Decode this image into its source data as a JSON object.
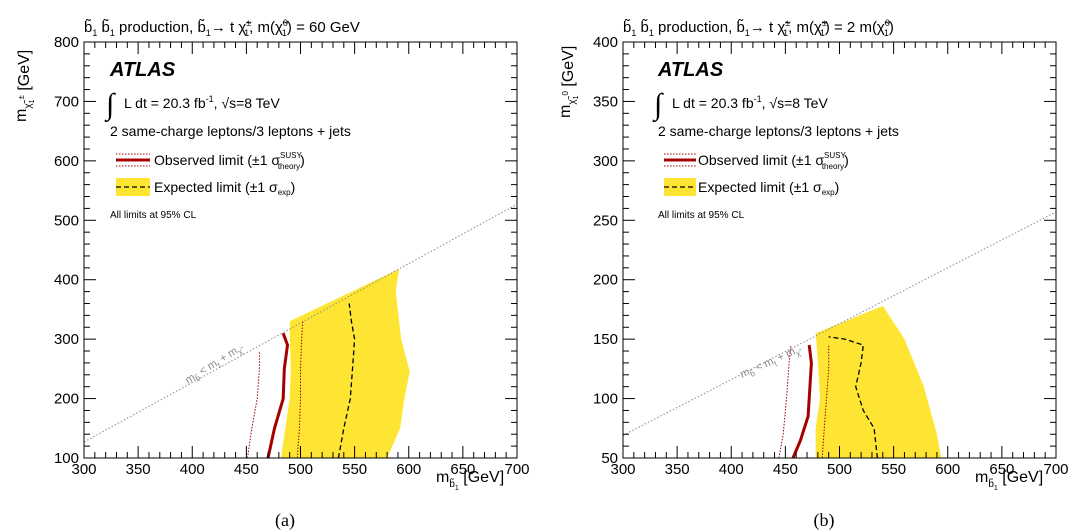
{
  "colors": {
    "expected_band": "#ffe533",
    "observed": "#a50000",
    "expected": "#000000",
    "kinematic": "#8a8a8a"
  },
  "chart_data": [
    {
      "type": "contour",
      "panel": "(a)",
      "title": "b̃₁ b̃₁ production, b̃₁→ t χ̃₁±, m(χ̃₁⁰) = 60 GeV",
      "xlabel": "m_b̃₁ [GeV]",
      "ylabel": "m_χ̃₁± [GeV]",
      "xlim": [
        300,
        700
      ],
      "ylim": [
        100,
        800
      ],
      "xticks": [
        300,
        350,
        400,
        450,
        500,
        550,
        600,
        650,
        700
      ],
      "yticks": [
        100,
        200,
        300,
        400,
        500,
        600,
        700,
        800
      ],
      "xtick_labels": [
        "300",
        "350",
        "400",
        "450",
        "500",
        "550",
        "600",
        "650",
        "700"
      ],
      "ytick_labels": [
        "100",
        "200",
        "300",
        "400",
        "500",
        "600",
        "700",
        "800"
      ],
      "experiment": "ATLAS",
      "luminosity_text": "L dt = 20.3 fb⁻¹, √s=8 TeV",
      "selection_text": "2 same-charge leptons/3 leptons + jets",
      "legend": [
        "Observed limit (±1 σ theory SUSY)",
        "Expected limit (±1 σ exp)"
      ],
      "note": "All limits at 95% CL",
      "kinematic_label": "m_b̃ < m_t + m_χ̃",
      "kinematic_line": [
        [
          300,
          127
        ],
        [
          700,
          527
        ]
      ],
      "observed": [
        [
          470,
          100
        ],
        [
          476,
          150
        ],
        [
          484,
          200
        ],
        [
          485,
          250
        ],
        [
          488,
          290
        ],
        [
          484,
          310
        ]
      ],
      "observed_minus1sigma": [
        [
          451,
          100
        ],
        [
          455,
          150
        ],
        [
          460,
          200
        ],
        [
          462,
          250
        ],
        [
          462,
          280
        ]
      ],
      "observed_plus1sigma": [
        [
          497,
          100
        ],
        [
          499,
          150
        ],
        [
          500,
          200
        ],
        [
          500,
          250
        ],
        [
          501,
          300
        ],
        [
          502,
          330
        ]
      ],
      "expected": [
        [
          535,
          100
        ],
        [
          540,
          150
        ],
        [
          546,
          200
        ],
        [
          548,
          250
        ],
        [
          550,
          300
        ],
        [
          547,
          330
        ],
        [
          545,
          360
        ]
      ],
      "expected_band": [
        [
          482,
          100
        ],
        [
          486,
          150
        ],
        [
          490,
          200
        ],
        [
          491,
          250
        ],
        [
          490,
          310
        ],
        [
          490,
          330
        ],
        [
          591,
          418
        ],
        [
          588,
          380
        ],
        [
          593,
          300
        ],
        [
          601,
          245
        ],
        [
          596,
          200
        ],
        [
          592,
          150
        ],
        [
          580,
          100
        ]
      ]
    },
    {
      "type": "contour",
      "panel": "(b)",
      "title": "b̃₁ b̃₁ production, b̃₁→ t χ̃₁±, m(χ̃₁±) = 2 m(χ̃₁⁰)",
      "xlabel": "m_b̃₁ [GeV]",
      "ylabel": "m_χ̃₁⁰ [GeV]",
      "xlim": [
        300,
        700
      ],
      "ylim": [
        50,
        400
      ],
      "xticks": [
        300,
        350,
        400,
        450,
        500,
        550,
        600,
        650,
        700
      ],
      "yticks": [
        50,
        100,
        150,
        200,
        250,
        300,
        350,
        400
      ],
      "xtick_labels": [
        "300",
        "350",
        "400",
        "450",
        "500",
        "550",
        "600",
        "650",
        "700"
      ],
      "ytick_labels": [
        "50",
        "100",
        "150",
        "200",
        "250",
        "300",
        "350",
        "400"
      ],
      "experiment": "ATLAS",
      "luminosity_text": "L dt = 20.3 fb⁻¹, √s=8 TeV",
      "selection_text": "2 same-charge leptons/3 leptons + jets",
      "legend": [
        "Observed limit (±1 σ theory SUSY)",
        "Expected limit (±1 σ exp)"
      ],
      "note": "All limits at 95% CL",
      "kinematic_label": "m_b̃ < m_t + m_χ̃",
      "kinematic_line": [
        [
          300,
          69
        ],
        [
          700,
          257
        ]
      ],
      "observed": [
        [
          457,
          50
        ],
        [
          464,
          65
        ],
        [
          471,
          85
        ],
        [
          472,
          100
        ],
        [
          474,
          130
        ],
        [
          472,
          145
        ]
      ],
      "observed_minus1sigma": [
        [
          444,
          50
        ],
        [
          448,
          70
        ],
        [
          451,
          100
        ],
        [
          453,
          125
        ],
        [
          455,
          145
        ]
      ],
      "observed_plus1sigma": [
        [
          484,
          50
        ],
        [
          486,
          75
        ],
        [
          488,
          100
        ],
        [
          490,
          125
        ],
        [
          490,
          145
        ]
      ],
      "expected": [
        [
          535,
          50
        ],
        [
          532,
          75
        ],
        [
          522,
          90
        ],
        [
          515,
          110
        ],
        [
          520,
          130
        ],
        [
          522,
          145
        ],
        [
          505,
          150
        ],
        [
          490,
          152
        ]
      ],
      "expected_band": [
        [
          478,
          50
        ],
        [
          478,
          75
        ],
        [
          482,
          100
        ],
        [
          480,
          130
        ],
        [
          478,
          155
        ],
        [
          540,
          178
        ],
        [
          560,
          150
        ],
        [
          578,
          110
        ],
        [
          590,
          70
        ],
        [
          594,
          50
        ]
      ]
    }
  ],
  "captions": [
    "(a)",
    "(b)"
  ]
}
